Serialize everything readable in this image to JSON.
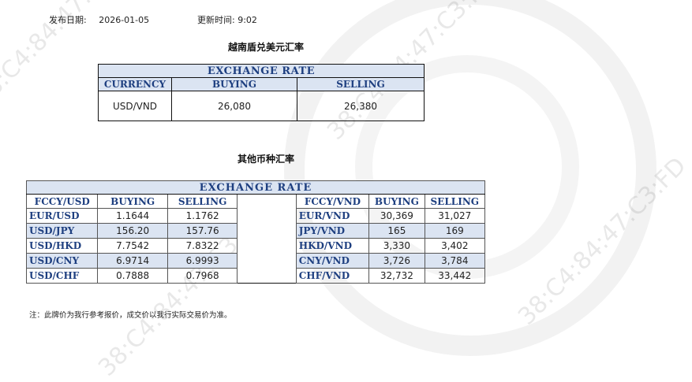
{
  "header": {
    "date_label": "发布日期:",
    "date_value": "2026-01-05",
    "time_label": "更新时间:",
    "time_value": "9:02"
  },
  "section1": {
    "title": "越南盾兑美元汇率",
    "caption": "EXCHANGE RATE",
    "columns": [
      "CURRENCY",
      "BUYING",
      "SELLING"
    ],
    "row": {
      "currency": "USD/VND",
      "buying": "26,080",
      "selling": "26,380"
    }
  },
  "section2": {
    "title": "其他币种汇率",
    "caption": "EXCHANGE  RATE",
    "columns": [
      "FCCY/USD",
      "BUYING",
      "SELLING",
      "FCCY/VND",
      "BUYING",
      "SELLING"
    ],
    "rows": [
      {
        "pair1": "EUR/USD",
        "buy1": "1.1644",
        "sell1": "1.1762",
        "pair2": "EUR/VND",
        "buy2": "30,369",
        "sell2": "31,027"
      },
      {
        "pair1": "USD/JPY",
        "buy1": "156.20",
        "sell1": "157.76",
        "pair2": "JPY/VND",
        "buy2": "165",
        "sell2": "169"
      },
      {
        "pair1": "USD/HKD",
        "buy1": "7.7542",
        "sell1": "7.8322",
        "pair2": "HKD/VND",
        "buy2": "3,330",
        "sell2": "3,402"
      },
      {
        "pair1": "USD/CNY",
        "buy1": "6.9714",
        "sell1": "6.9993",
        "pair2": "CNY/VND",
        "buy2": "3,726",
        "sell2": "3,784"
      },
      {
        "pair1": "USD/CHF",
        "buy1": "0.7888",
        "sell1": "0.7968",
        "pair2": "CHF/VND",
        "buy2": "32,732",
        "sell2": "33,442"
      }
    ]
  },
  "note": "注：此牌价为我行参考报价，成交价以我行实际交易价为准。",
  "watermark": {
    "text": "38:C4:84:47:C3:FD"
  },
  "colors": {
    "header_fill": "#dbe4f2",
    "header_text": "#1e3f80",
    "watermark": "#e6e6e6"
  }
}
